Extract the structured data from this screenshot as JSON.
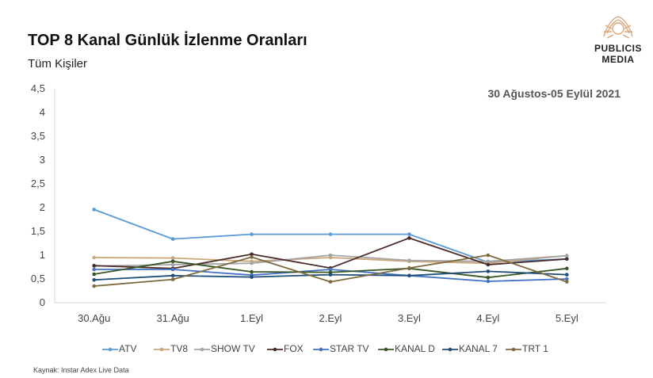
{
  "header": {
    "title": "TOP 8 Kanal Günlük İzlenme Oranları",
    "subtitle": "Tüm Kişiler"
  },
  "logo": {
    "line1": "PUBLICIS",
    "line2": "MEDIA",
    "color": "#d8a77a"
  },
  "date_range": "30 Ağustos-05 Eylül 2021",
  "source": "Kaynak: Instar  Adex Live Data",
  "chart_data": {
    "type": "line",
    "categories": [
      "30.Ağu",
      "31.Ağu",
      "1.Eyl",
      "2.Eyl",
      "3.Eyl",
      "4.Eyl",
      "5.Eyl"
    ],
    "ylim": [
      0,
      4.5
    ],
    "yticks": [
      "0",
      "0,5",
      "1",
      "1,5",
      "2",
      "2,5",
      "3",
      "3,5",
      "4",
      "4,5"
    ],
    "grid": false,
    "legend_position": "bottom",
    "series": [
      {
        "name": "ATV",
        "color": "#5b9bd5",
        "values": [
          1.96,
          1.34,
          1.44,
          1.44,
          1.44,
          0.85,
          0.92
        ]
      },
      {
        "name": "TV8",
        "color": "#c9a77a",
        "values": [
          0.95,
          0.94,
          0.87,
          0.95,
          0.87,
          0.83,
          0.99
        ]
      },
      {
        "name": "SHOW TV",
        "color": "#a5a5a5",
        "values": [
          0.77,
          0.8,
          0.83,
          1.0,
          0.89,
          0.87,
          0.99
        ]
      },
      {
        "name": "FOX",
        "color": "#4a2c2a",
        "values": [
          0.78,
          0.72,
          1.02,
          0.73,
          1.36,
          0.8,
          0.92
        ]
      },
      {
        "name": "STAR TV",
        "color": "#4472c4",
        "values": [
          0.7,
          0.7,
          0.58,
          0.7,
          0.57,
          0.45,
          0.5
        ]
      },
      {
        "name": "KANAL D",
        "color": "#375623",
        "values": [
          0.6,
          0.87,
          0.65,
          0.64,
          0.72,
          0.53,
          0.72
        ]
      },
      {
        "name": "KANAL 7",
        "color": "#1f4e79",
        "values": [
          0.48,
          0.57,
          0.54,
          0.59,
          0.57,
          0.66,
          0.59
        ]
      },
      {
        "name": "TRT 1",
        "color": "#7f6a3f",
        "values": [
          0.35,
          0.49,
          0.96,
          0.44,
          0.73,
          1.0,
          0.44
        ]
      }
    ]
  }
}
